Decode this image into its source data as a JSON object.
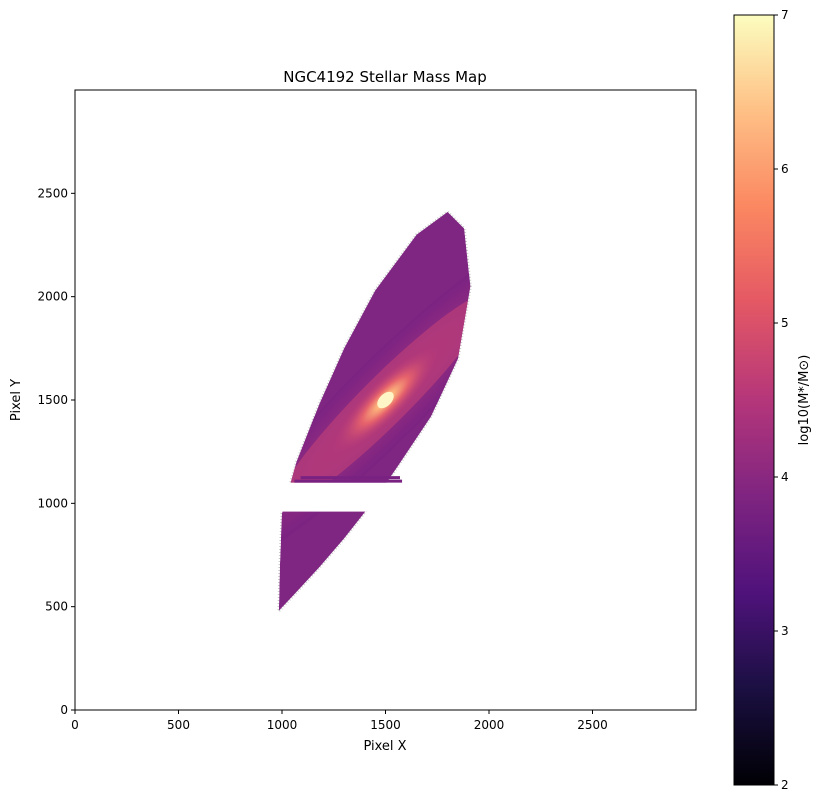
{
  "chart_data": {
    "type": "heatmap",
    "title": "NGC4192 Stellar Mass Map",
    "xlabel": "Pixel X",
    "ylabel": "Pixel Y",
    "xlim": [
      0,
      3000
    ],
    "ylim": [
      0,
      3000
    ],
    "xticks": [
      0,
      500,
      1000,
      1500,
      2000,
      2500
    ],
    "yticks": [
      0,
      500,
      1000,
      1500,
      2000,
      2500
    ],
    "xtick_labels": [
      "0",
      "500",
      "1000",
      "1500",
      "2000",
      "2500"
    ],
    "ytick_labels": [
      "0",
      "500",
      "1000",
      "1500",
      "2000",
      "2500"
    ],
    "colormap": "magma",
    "colorbar": {
      "label": "log10(M*/M⊙)",
      "range": [
        2,
        7
      ],
      "ticks": [
        2,
        3,
        4,
        5,
        6,
        7
      ],
      "tick_labels": [
        "2",
        "3",
        "4",
        "5",
        "6",
        "7"
      ]
    },
    "galaxy": {
      "center": [
        1500,
        1500
      ],
      "outline": [
        [
          985,
          480
        ],
        [
          1060,
          560
        ],
        [
          1180,
          690
        ],
        [
          1300,
          830
        ],
        [
          1450,
          1020
        ],
        [
          1560,
          1180
        ],
        [
          1720,
          1420
        ],
        [
          1850,
          1700
        ],
        [
          1910,
          2050
        ],
        [
          1880,
          2330
        ],
        [
          1800,
          2410
        ],
        [
          1650,
          2300
        ],
        [
          1450,
          2030
        ],
        [
          1300,
          1750
        ],
        [
          1180,
          1480
        ],
        [
          1070,
          1200
        ],
        [
          1000,
          950
        ],
        [
          990,
          700
        ]
      ],
      "gap_y_range": [
        960,
        1100
      ],
      "stripes": [
        {
          "x_range": [
            1060,
            1580
          ],
          "y": 1105
        },
        {
          "x_range": [
            1090,
            1570
          ],
          "y": 1122
        }
      ],
      "peak_log_mass": 6.8,
      "edge_log_mass": 3.9,
      "outer_halo_log_mass": 3.5
    }
  }
}
